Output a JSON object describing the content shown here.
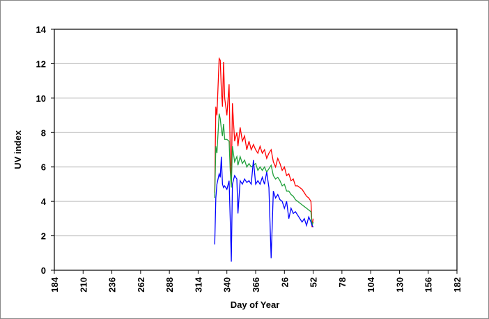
{
  "chart_data": {
    "type": "line",
    "xlabel": "Day of Year",
    "ylabel": "UV index",
    "x": [
      329,
      330,
      331,
      333,
      334,
      335,
      336,
      337,
      338,
      340,
      342,
      343,
      344,
      345,
      347,
      349,
      350,
      352,
      354,
      356,
      358,
      360,
      362,
      364,
      366,
      368,
      370,
      372,
      374,
      376,
      378,
      380,
      382,
      384,
      386,
      388,
      390,
      392,
      394,
      396,
      398,
      400,
      402,
      404,
      406,
      408,
      410,
      412,
      414,
      416,
      417,
      418
    ],
    "series": [
      {
        "color": "#ff0000",
        "values": [
          4.5,
          9.5,
          9.0,
          12.3,
          12.2,
          10.5,
          9.5,
          12.1,
          10.0,
          9.0,
          10.8,
          7.0,
          5.0,
          9.7,
          7.5,
          8.0,
          7.2,
          8.3,
          7.5,
          7.8,
          7.0,
          7.5,
          7.0,
          7.3,
          7.0,
          6.8,
          7.2,
          6.8,
          7.0,
          6.5,
          6.8,
          7.0,
          6.3,
          6.0,
          6.5,
          6.2,
          5.8,
          6.0,
          5.5,
          5.6,
          5.2,
          5.3,
          4.9,
          4.9,
          4.8,
          4.7,
          4.5,
          4.3,
          4.2,
          4.0,
          2.5,
          3.0
        ]
      },
      {
        "color": "#1fa03a",
        "values": [
          4.2,
          7.2,
          6.8,
          9.1,
          8.8,
          8.2,
          7.8,
          8.5,
          7.6,
          7.6,
          7.5,
          5.8,
          4.8,
          7.2,
          6.3,
          6.6,
          6.1,
          6.6,
          6.2,
          6.4,
          6.0,
          6.2,
          6.0,
          6.1,
          6.2,
          5.8,
          6.0,
          5.8,
          6.0,
          5.7,
          5.9,
          6.1,
          5.5,
          5.3,
          5.4,
          5.2,
          4.9,
          5.0,
          4.6,
          4.6,
          4.4,
          4.3,
          4.1,
          4.0,
          3.9,
          3.8,
          3.7,
          3.6,
          3.5,
          3.4,
          2.6,
          2.8
        ]
      },
      {
        "color": "#0000ff",
        "values": [
          1.5,
          4.2,
          5.0,
          5.6,
          5.4,
          6.6,
          5.0,
          4.8,
          4.9,
          4.7,
          5.2,
          3.0,
          0.5,
          5.0,
          5.5,
          5.3,
          3.3,
          5.2,
          5.0,
          5.3,
          5.1,
          5.2,
          5.0,
          6.4,
          5.0,
          5.2,
          5.0,
          5.4,
          5.0,
          5.7,
          4.8,
          0.7,
          4.6,
          4.2,
          4.4,
          4.1,
          4.0,
          3.6,
          4.0,
          3.0,
          3.6,
          3.3,
          3.4,
          3.2,
          3.0,
          2.8,
          3.0,
          2.6,
          3.1,
          2.8,
          2.6,
          2.5
        ]
      }
    ],
    "xlim": [
      184,
      548
    ],
    "xticks": [
      184,
      210,
      236,
      262,
      288,
      314,
      340,
      366,
      {
        "value": 392,
        "label": "26"
      },
      {
        "value": 418,
        "label": "52"
      },
      {
        "value": 444,
        "label": "78"
      },
      {
        "value": 470,
        "label": "104"
      },
      {
        "value": 496,
        "label": "130"
      },
      {
        "value": 522,
        "label": "156"
      },
      {
        "value": 548,
        "label": "182"
      }
    ],
    "ylim": [
      0,
      14
    ],
    "yticks": [
      0,
      2,
      4,
      6,
      8,
      10,
      12,
      14
    ],
    "grid": true
  }
}
